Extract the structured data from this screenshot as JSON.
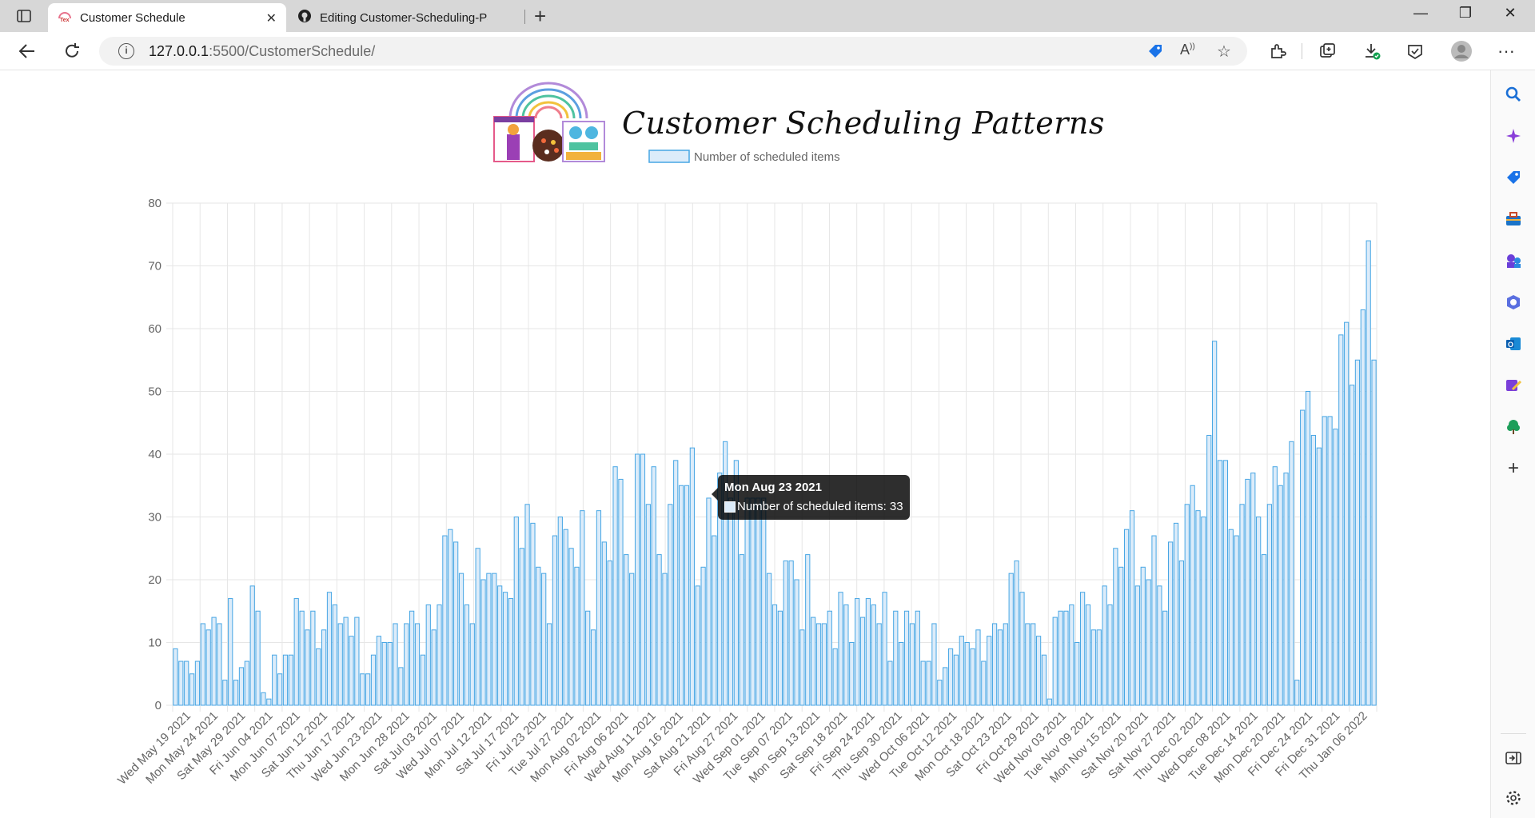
{
  "browser": {
    "tabs": [
      {
        "title": "Customer Schedule",
        "active": true
      },
      {
        "title": "Editing Customer-Scheduling-Pa",
        "active": false
      }
    ],
    "url_host": "127.0.0.1",
    "url_rest": ":5500/CustomerSchedule/"
  },
  "page": {
    "title": "Customer Scheduling Patterns"
  },
  "tooltip": {
    "title": "Mon Aug 23 2021",
    "body": "Number of scheduled items: 33"
  },
  "colors": {
    "bar_fill": "#dcecfa",
    "bar_border": "#47a6e4",
    "grid": "#e6e6e6"
  },
  "chart_data": {
    "type": "bar",
    "title": "",
    "xlabel": "",
    "ylabel": "",
    "ylim": [
      0,
      80
    ],
    "yticks": [
      0,
      10,
      20,
      30,
      40,
      50,
      60,
      70,
      80
    ],
    "grid": true,
    "legend_position": "top",
    "series": [
      {
        "name": "Number of scheduled items",
        "values": [
          9,
          7,
          7,
          5,
          7,
          13,
          12,
          14,
          13,
          4,
          17,
          4,
          6,
          7,
          19,
          15,
          2,
          1,
          8,
          5,
          8,
          8,
          17,
          15,
          12,
          15,
          9,
          12,
          18,
          16,
          13,
          14,
          11,
          14,
          5,
          5,
          8,
          11,
          10,
          10,
          13,
          6,
          13,
          15,
          13,
          8,
          16,
          12,
          16,
          27,
          28,
          26,
          21,
          16,
          13,
          25,
          20,
          21,
          21,
          19,
          18,
          17,
          30,
          25,
          32,
          29,
          22,
          21,
          13,
          27,
          30,
          28,
          25,
          22,
          31,
          15,
          12,
          31,
          26,
          23,
          38,
          36,
          24,
          21,
          40,
          40,
          32,
          38,
          24,
          21,
          32,
          39,
          35,
          35,
          41,
          19,
          22,
          33,
          27,
          37,
          42,
          33,
          39,
          24,
          33,
          33,
          33,
          33,
          21,
          16,
          15,
          23,
          23,
          20,
          12,
          24,
          14,
          13,
          13,
          15,
          9,
          18,
          16,
          10,
          17,
          14,
          17,
          16,
          13,
          18,
          7,
          15,
          10,
          15,
          13,
          15,
          7,
          7,
          13,
          4,
          6,
          9,
          8,
          11,
          10,
          9,
          12,
          7,
          11,
          13,
          12,
          13,
          21,
          23,
          18,
          13,
          13,
          11,
          8,
          1,
          14,
          15,
          15,
          16,
          10,
          18,
          16,
          12,
          12,
          19,
          16,
          25,
          22,
          28,
          31,
          19,
          22,
          20,
          27,
          19,
          15,
          26,
          29,
          23,
          32,
          35,
          31,
          30,
          43,
          58,
          39,
          39,
          28,
          27,
          32,
          36,
          37,
          30,
          24,
          32,
          38,
          35,
          37,
          42,
          4,
          47,
          50,
          43,
          41,
          46,
          46,
          44,
          59,
          61,
          51,
          55,
          63,
          74,
          55
        ]
      }
    ],
    "x_tick_labels": [
      "Wed May 19 2021",
      "Mon May 24 2021",
      "Sat May 29 2021",
      "Fri Jun 04 2021",
      "Mon Jun 07 2021",
      "Sat Jun 12 2021",
      "Thu Jun 17 2021",
      "Wed Jun 23 2021",
      "Mon Jun 28 2021",
      "Sat Jul 03 2021",
      "Wed Jul 07 2021",
      "Mon Jul 12 2021",
      "Sat Jul 17 2021",
      "Fri Jul 23 2021",
      "Tue Jul 27 2021",
      "Mon Aug 02 2021",
      "Fri Aug 06 2021",
      "Wed Aug 11 2021",
      "Mon Aug 16 2021",
      "Sat Aug 21 2021",
      "Fri Aug 27 2021",
      "Wed Sep 01 2021",
      "Tue Sep 07 2021",
      "Mon Sep 13 2021",
      "Sat Sep 18 2021",
      "Fri Sep 24 2021",
      "Thu Sep 30 2021",
      "Wed Oct 06 2021",
      "Tue Oct 12 2021",
      "Mon Oct 18 2021",
      "Sat Oct 23 2021",
      "Fri Oct 29 2021",
      "Wed Nov 03 2021",
      "Tue Nov 09 2021",
      "Mon Nov 15 2021",
      "Sat Nov 20 2021",
      "Sat Nov 27 2021",
      "Thu Dec 02 2021",
      "Wed Dec 08 2021",
      "Tue Dec 14 2021",
      "Mon Dec 20 2021",
      "Fri Dec 24 2021",
      "Fri Dec 31 2021",
      "Thu Jan 06 2022"
    ]
  }
}
